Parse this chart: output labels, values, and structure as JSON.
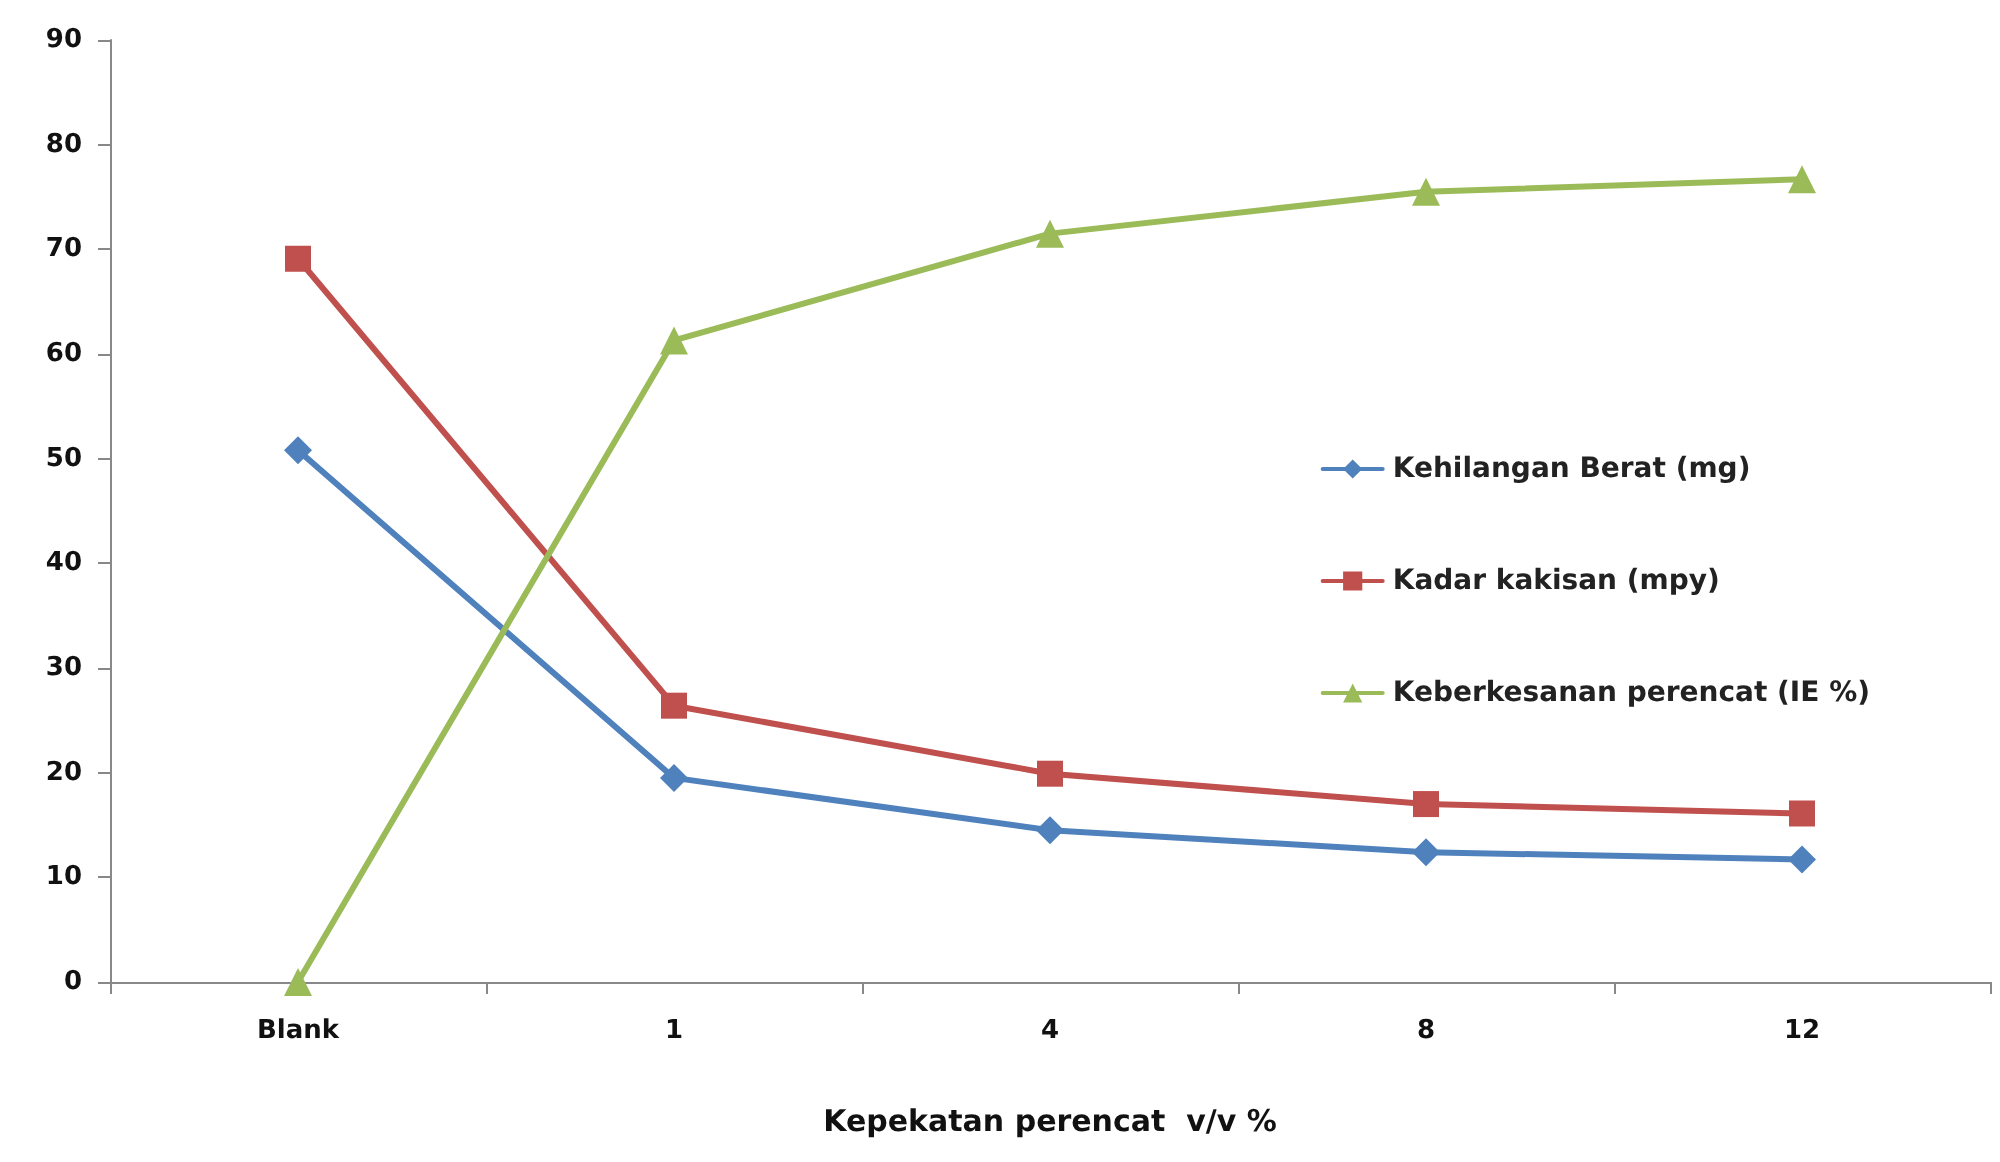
{
  "chart_data": {
    "type": "line",
    "xlabel": "Kepekatan perencat  v/v %",
    "categories": [
      "Blank",
      "1",
      "4",
      "8",
      "12"
    ],
    "series": [
      {
        "name": "Kehilangan Berat (mg)",
        "color": "#4f81bd",
        "marker": "diamond",
        "values": [
          50.8,
          19.5,
          14.5,
          12.4,
          11.7
        ]
      },
      {
        "name": "Kadar kakisan (mpy)",
        "color": "#c0504d",
        "marker": "square",
        "values": [
          69.1,
          26.4,
          19.9,
          17.0,
          16.1
        ]
      },
      {
        "name": "Keberkesanan perencat (IE %)",
        "color": "#9bbb59",
        "marker": "triangle",
        "values": [
          0,
          61.3,
          71.5,
          75.5,
          76.7
        ]
      }
    ],
    "ylim": [
      0,
      90
    ],
    "yticks": [
      0,
      10,
      20,
      30,
      40,
      50,
      60,
      70,
      80,
      90
    ],
    "grid": false,
    "legend": "right",
    "line_style": "solid"
  }
}
